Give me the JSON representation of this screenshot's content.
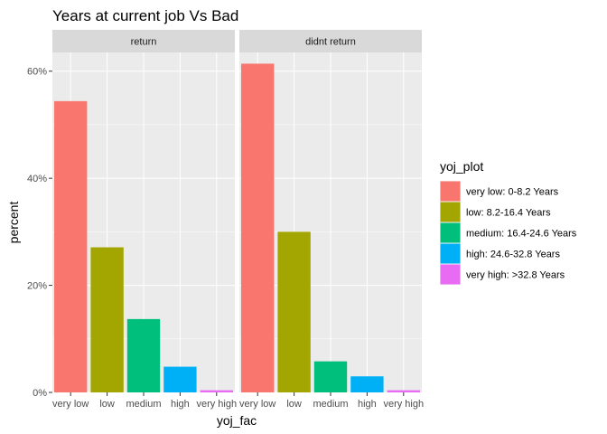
{
  "chart_data": {
    "type": "bar",
    "title": "Years at current job Vs Bad",
    "xlabel": "yoj_fac",
    "ylabel": "percent",
    "ylim": [
      0,
      0.635
    ],
    "y_ticks": [
      0,
      0.2,
      0.4,
      0.6
    ],
    "y_tick_labels": [
      "0%",
      "20%",
      "40%",
      "60%"
    ],
    "categories": [
      "very low",
      "low",
      "medium",
      "high",
      "very high"
    ],
    "colors": [
      "#F8766D",
      "#A3A500",
      "#00BF7D",
      "#00B0F6",
      "#E76BF3"
    ],
    "panel_background": "#EBEBEB",
    "strip_background": "#D9D9D9",
    "facets": [
      {
        "label": "return",
        "values": [
          0.544,
          0.271,
          0.137,
          0.048,
          0.004
        ]
      },
      {
        "label": "didnt return",
        "values": [
          0.614,
          0.3,
          0.058,
          0.03,
          0.004
        ]
      }
    ],
    "legend": {
      "title": "yoj_plot",
      "position": "right",
      "entries": [
        "very low: 0-8.2 Years",
        "low: 8.2-16.4 Years",
        "medium: 16.4-24.6 Years",
        "high: 24.6-32.8 Years",
        "very high: >32.8 Years"
      ]
    },
    "grid": true
  }
}
